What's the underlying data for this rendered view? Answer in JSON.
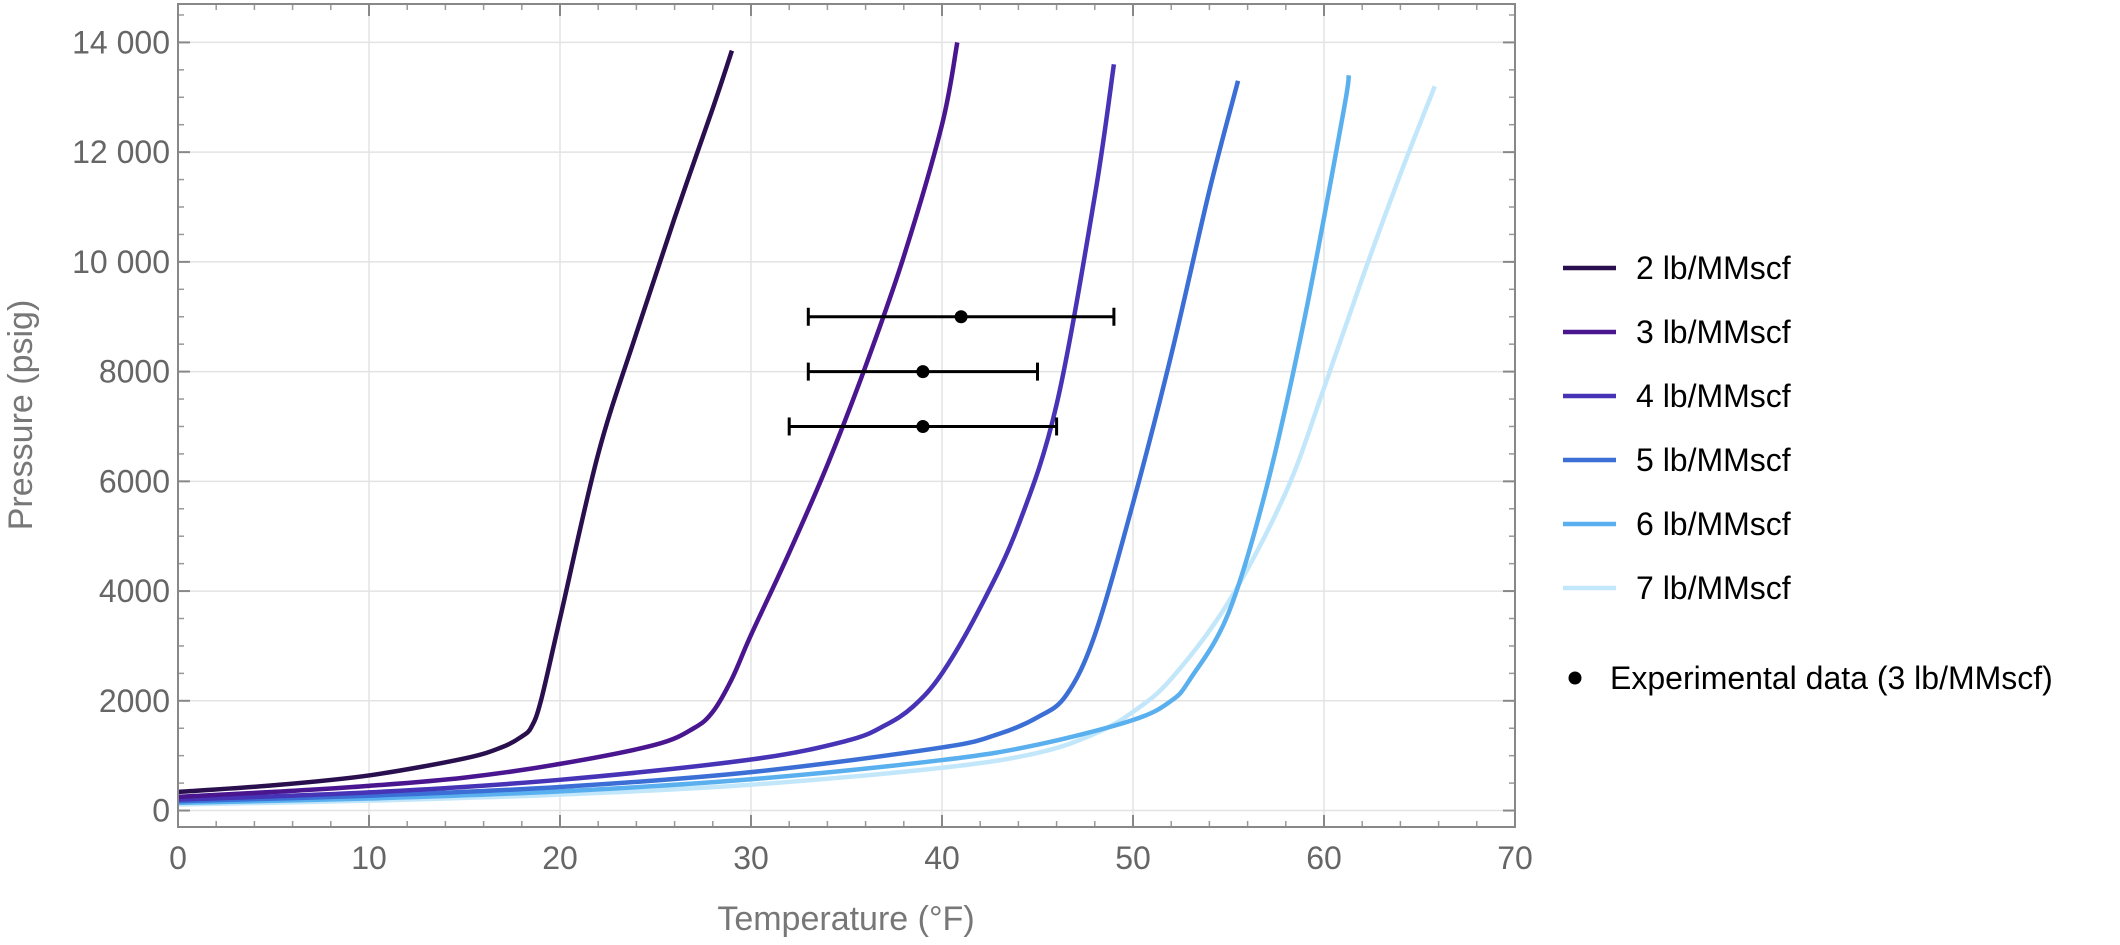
{
  "chart_data": {
    "type": "line",
    "xlabel": "Temperature (°F)",
    "ylabel": "Pressure (psig)",
    "xlim": [
      0,
      70
    ],
    "ylim": [
      -300,
      14700
    ],
    "x_ticks": [
      0,
      10,
      20,
      30,
      40,
      50,
      60,
      70
    ],
    "x_tick_labels": [
      "0",
      "10",
      "20",
      "30",
      "40",
      "50",
      "60",
      "70"
    ],
    "y_ticks": [
      0,
      2000,
      4000,
      6000,
      8000,
      10000,
      12000,
      14000
    ],
    "y_tick_labels": [
      "0",
      "2000",
      "4000",
      "6000",
      "8000",
      "10 000",
      "12 000",
      "14 000"
    ],
    "grid": true,
    "legend_position": "right",
    "series": [
      {
        "name": "2 lb/MMscf",
        "color": "#2a0f4e",
        "points": [
          [
            0,
            340
          ],
          [
            5,
            460
          ],
          [
            10,
            640
          ],
          [
            15,
            950
          ],
          [
            17,
            1160
          ],
          [
            18,
            1350
          ],
          [
            18.5,
            1520
          ],
          [
            19,
            2000
          ],
          [
            20,
            3500
          ],
          [
            22,
            6500
          ],
          [
            24,
            8700
          ],
          [
            26,
            10800
          ],
          [
            28,
            12800
          ],
          [
            29,
            13850
          ]
        ]
      },
      {
        "name": "3 lb/MMscf",
        "color": "#4a1690",
        "points": [
          [
            0,
            250
          ],
          [
            5,
            340
          ],
          [
            10,
            450
          ],
          [
            15,
            600
          ],
          [
            20,
            850
          ],
          [
            25,
            1200
          ],
          [
            27,
            1500
          ],
          [
            28,
            1800
          ],
          [
            29,
            2400
          ],
          [
            30,
            3200
          ],
          [
            32,
            4700
          ],
          [
            34,
            6300
          ],
          [
            36,
            8100
          ],
          [
            38,
            10100
          ],
          [
            40,
            12500
          ],
          [
            40.8,
            14000
          ]
        ]
      },
      {
        "name": "4 lb/MMscf",
        "color": "#4633b6",
        "points": [
          [
            0,
            200
          ],
          [
            10,
            330
          ],
          [
            20,
            560
          ],
          [
            30,
            930
          ],
          [
            35,
            1270
          ],
          [
            37,
            1550
          ],
          [
            38.5,
            1900
          ],
          [
            40,
            2500
          ],
          [
            42,
            3700
          ],
          [
            44,
            5200
          ],
          [
            46,
            7400
          ],
          [
            48,
            11200
          ],
          [
            49,
            13600
          ]
        ]
      },
      {
        "name": "5 lb/MMscf",
        "color": "#3b6fd6",
        "points": [
          [
            0,
            170
          ],
          [
            10,
            270
          ],
          [
            20,
            430
          ],
          [
            30,
            700
          ],
          [
            40,
            1150
          ],
          [
            43,
            1400
          ],
          [
            45,
            1700
          ],
          [
            46.5,
            2100
          ],
          [
            48,
            3200
          ],
          [
            50,
            5600
          ],
          [
            52,
            8300
          ],
          [
            54,
            11300
          ],
          [
            55.5,
            13300
          ]
        ]
      },
      {
        "name": "6 lb/MMscf",
        "color": "#5ab0ee",
        "points": [
          [
            0,
            140
          ],
          [
            10,
            220
          ],
          [
            20,
            350
          ],
          [
            30,
            570
          ],
          [
            40,
            920
          ],
          [
            45,
            1200
          ],
          [
            50,
            1650
          ],
          [
            52,
            2000
          ],
          [
            53,
            2400
          ],
          [
            55,
            3600
          ],
          [
            57,
            5900
          ],
          [
            59,
            9000
          ],
          [
            61,
            12700
          ],
          [
            61.3,
            13400
          ]
        ]
      },
      {
        "name": "7 lb/MMscf",
        "color": "#c3e7fa",
        "points": [
          [
            0,
            110
          ],
          [
            10,
            180
          ],
          [
            20,
            290
          ],
          [
            30,
            470
          ],
          [
            40,
            780
          ],
          [
            45,
            1050
          ],
          [
            48,
            1400
          ],
          [
            50,
            1800
          ],
          [
            52,
            2400
          ],
          [
            55,
            3800
          ],
          [
            58,
            5800
          ],
          [
            60,
            7700
          ],
          [
            62,
            9700
          ],
          [
            64,
            11600
          ],
          [
            65.8,
            13200
          ]
        ]
      }
    ],
    "experimental_data": {
      "name": "Experimental data (3 lb/MMscf)",
      "color": "#000000",
      "points": [
        {
          "x": 41,
          "y": 9000,
          "x_low": 33,
          "x_high": 49
        },
        {
          "x": 39,
          "y": 8000,
          "x_low": 33,
          "x_high": 45
        },
        {
          "x": 39,
          "y": 7000,
          "x_low": 32,
          "x_high": 46
        }
      ]
    }
  }
}
